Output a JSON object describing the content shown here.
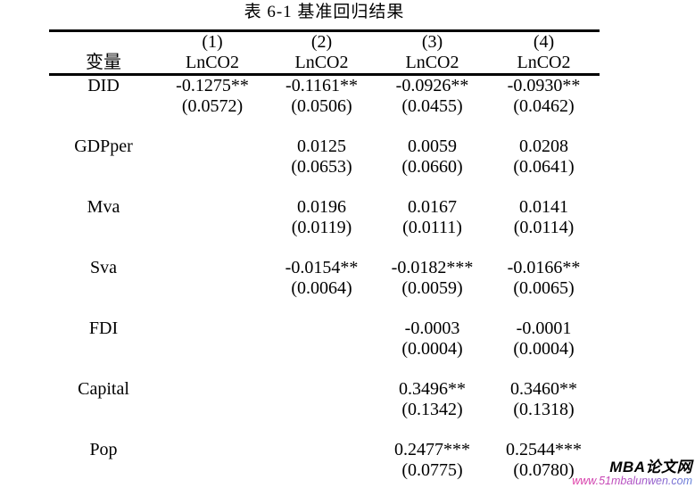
{
  "title": "表 6-1 基准回归结果",
  "table": {
    "header": {
      "variable_label": "变量",
      "columns": [
        {
          "number": "(1)",
          "dv": "LnCO2"
        },
        {
          "number": "(2)",
          "dv": "LnCO2"
        },
        {
          "number": "(3)",
          "dv": "LnCO2"
        },
        {
          "number": "(4)",
          "dv": "LnCO2"
        }
      ]
    },
    "rows": [
      {
        "variable": "DID",
        "cells": [
          {
            "coef": "-0.1275**",
            "se": "(0.0572)"
          },
          {
            "coef": "-0.1161**",
            "se": "(0.0506)"
          },
          {
            "coef": "-0.0926**",
            "se": "(0.0455)"
          },
          {
            "coef": "-0.0930**",
            "se": "(0.0462)"
          }
        ]
      },
      {
        "variable": "GDPper",
        "cells": [
          {
            "coef": "",
            "se": ""
          },
          {
            "coef": "0.0125",
            "se": "(0.0653)"
          },
          {
            "coef": "0.0059",
            "se": "(0.0660)"
          },
          {
            "coef": "0.0208",
            "se": "(0.0641)"
          }
        ]
      },
      {
        "variable": "Mva",
        "cells": [
          {
            "coef": "",
            "se": ""
          },
          {
            "coef": "0.0196",
            "se": "(0.0119)"
          },
          {
            "coef": "0.0167",
            "se": "(0.0111)"
          },
          {
            "coef": "0.0141",
            "se": "(0.0114)"
          }
        ]
      },
      {
        "variable": "Sva",
        "cells": [
          {
            "coef": "",
            "se": ""
          },
          {
            "coef": "-0.0154**",
            "se": "(0.0064)"
          },
          {
            "coef": "-0.0182***",
            "se": "(0.0059)"
          },
          {
            "coef": "-0.0166**",
            "se": "(0.0065)"
          }
        ]
      },
      {
        "variable": "FDI",
        "cells": [
          {
            "coef": "",
            "se": ""
          },
          {
            "coef": "",
            "se": ""
          },
          {
            "coef": "-0.0003",
            "se": "(0.0004)"
          },
          {
            "coef": "-0.0001",
            "se": "(0.0004)"
          }
        ]
      },
      {
        "variable": "Capital",
        "cells": [
          {
            "coef": "",
            "se": ""
          },
          {
            "coef": "",
            "se": ""
          },
          {
            "coef": "0.3496**",
            "se": "(0.1342)"
          },
          {
            "coef": "0.3460**",
            "se": "(0.1318)"
          }
        ]
      },
      {
        "variable": "Pop",
        "cells": [
          {
            "coef": "",
            "se": ""
          },
          {
            "coef": "",
            "se": ""
          },
          {
            "coef": "0.2477***",
            "se": "(0.0775)"
          },
          {
            "coef": "0.2544***",
            "se": "(0.0780)"
          }
        ]
      }
    ]
  },
  "watermark": {
    "site_name": "MBA论文网",
    "url": "www.51mbalunwen.com",
    "url_gradient_start": "#e23aa4",
    "url_gradient_end": "#5f7fd9",
    "site_name_color": "#000000"
  }
}
